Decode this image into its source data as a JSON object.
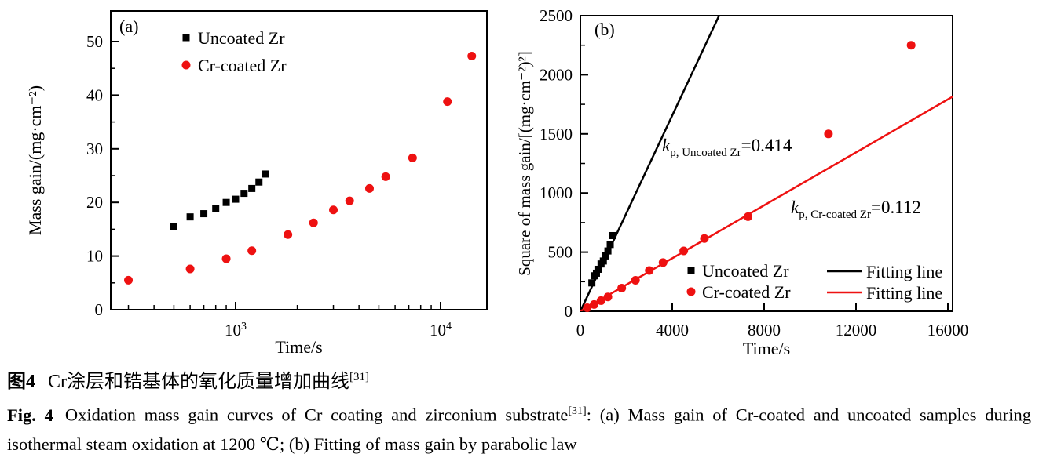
{
  "figure": {
    "caption_cn": {
      "label": "图4",
      "text": "Cr涂层和锆基体的氧化质量增加曲线",
      "sup": "[31]"
    },
    "caption_en": {
      "label": "Fig. 4",
      "part1": "Oxidation mass gain curves of Cr coating and zirconium substrate",
      "sup": "[31]",
      "part2": ": (a) Mass gain of Cr-coated and uncoated samples during isothermal steam oxidation at 1200 ℃; (b) Fitting of mass gain by parabolic law"
    }
  },
  "colors": {
    "black": "#000000",
    "red": "#ee1111"
  },
  "chart_data": [
    {
      "panel_label": "(a)",
      "type": "scatter",
      "xlabel": "Time/s",
      "ylabel": "Mass gain/(mg·cm⁻²)",
      "xscale": "log",
      "xlim": [
        245,
        16800
      ],
      "ylim": [
        0,
        55.7
      ],
      "grid": false,
      "x_major_ticks": [
        {
          "value": 1000,
          "base": "10",
          "sup": "3"
        },
        {
          "value": 10000,
          "base": "10",
          "sup": "4"
        }
      ],
      "x_minor_ticks": [
        300,
        400,
        500,
        600,
        700,
        800,
        900,
        2000,
        3000,
        4000,
        5000,
        6000,
        7000,
        8000,
        9000
      ],
      "y_major_ticks": [
        0,
        10,
        20,
        30,
        40,
        50
      ],
      "y_minor_ticks": [
        5,
        15,
        25,
        35,
        45
      ],
      "series": [
        {
          "name": "Uncoated Zr",
          "marker": "square",
          "color": "#000000",
          "points": [
            [
              500,
              15.5
            ],
            [
              600,
              17.3
            ],
            [
              700,
              17.9
            ],
            [
              800,
              18.8
            ],
            [
              900,
              20.0
            ],
            [
              1000,
              20.6
            ],
            [
              1100,
              21.7
            ],
            [
              1200,
              22.6
            ],
            [
              1300,
              23.8
            ],
            [
              1400,
              25.3
            ]
          ]
        },
        {
          "name": "Cr-coated Zr",
          "marker": "circle",
          "color": "#ee1111",
          "points": [
            [
              300,
              5.5
            ],
            [
              600,
              7.6
            ],
            [
              900,
              9.5
            ],
            [
              1200,
              11.0
            ],
            [
              1800,
              14.0
            ],
            [
              2400,
              16.2
            ],
            [
              3000,
              18.6
            ],
            [
              3600,
              20.3
            ],
            [
              4500,
              22.6
            ],
            [
              5400,
              24.8
            ],
            [
              7300,
              28.3
            ],
            [
              10800,
              38.8
            ],
            [
              14200,
              47.3
            ]
          ]
        }
      ],
      "legend": [
        {
          "label": "Uncoated Zr",
          "marker": "square",
          "color": "#000000"
        },
        {
          "label": "Cr-coated Zr",
          "marker": "circle",
          "color": "#ee1111"
        }
      ],
      "legend_position": "top-left-inside"
    },
    {
      "panel_label": "(b)",
      "type": "scatter",
      "xlabel": "Time/s",
      "ylabel": "Square of mass gain/[(mg·cm⁻²)²]",
      "xscale": "linear",
      "xlim": [
        0,
        16200
      ],
      "ylim": [
        0,
        2500
      ],
      "grid": false,
      "x_major_ticks": [
        0,
        4000,
        8000,
        12000,
        16000
      ],
      "y_major_ticks": [
        0,
        500,
        1000,
        1500,
        2000,
        2500
      ],
      "y_minor_ticks": [
        250,
        750,
        1250,
        1750,
        2250
      ],
      "series": [
        {
          "name": "Uncoated Zr",
          "marker": "square",
          "color": "#000000",
          "points": [
            [
              500,
              240
            ],
            [
              600,
              300
            ],
            [
              700,
              322
            ],
            [
              800,
              355
            ],
            [
              900,
              400
            ],
            [
              1000,
              425
            ],
            [
              1100,
              468
            ],
            [
              1200,
              510
            ],
            [
              1300,
              565
            ],
            [
              1400,
              640
            ]
          ]
        },
        {
          "name": "Cr-coated Zr",
          "marker": "circle",
          "color": "#ee1111",
          "points": [
            [
              300,
              30
            ],
            [
              600,
              57
            ],
            [
              900,
              90
            ],
            [
              1200,
              121
            ],
            [
              1800,
              196
            ],
            [
              2400,
              262
            ],
            [
              3000,
              345
            ],
            [
              3600,
              412
            ],
            [
              4500,
              511
            ],
            [
              5400,
              615
            ],
            [
              7300,
              800
            ],
            [
              10800,
              1500
            ],
            [
              14400,
              2250
            ]
          ]
        }
      ],
      "fit_lines": [
        {
          "name": "Fitting line",
          "color": "#000000",
          "slope": 0.414
        },
        {
          "name": "Fitting line",
          "color": "#ee1111",
          "slope": 0.112
        }
      ],
      "annotations": [
        {
          "k": "k",
          "sub": "p, Uncoated Zr",
          "eq": "=0.414"
        },
        {
          "k": "k",
          "sub": "p, Cr-coated Zr",
          "eq": "=0.112"
        }
      ],
      "legend": [
        {
          "label": "Uncoated Zr",
          "marker": "square",
          "color": "#000000"
        },
        {
          "label": "Cr-coated Zr",
          "marker": "circle",
          "color": "#ee1111"
        },
        {
          "label": "Fitting line",
          "marker": "line",
          "color": "#000000"
        },
        {
          "label": "Fitting line",
          "marker": "line",
          "color": "#ee1111"
        }
      ],
      "legend_position": "bottom-right-inside"
    }
  ]
}
